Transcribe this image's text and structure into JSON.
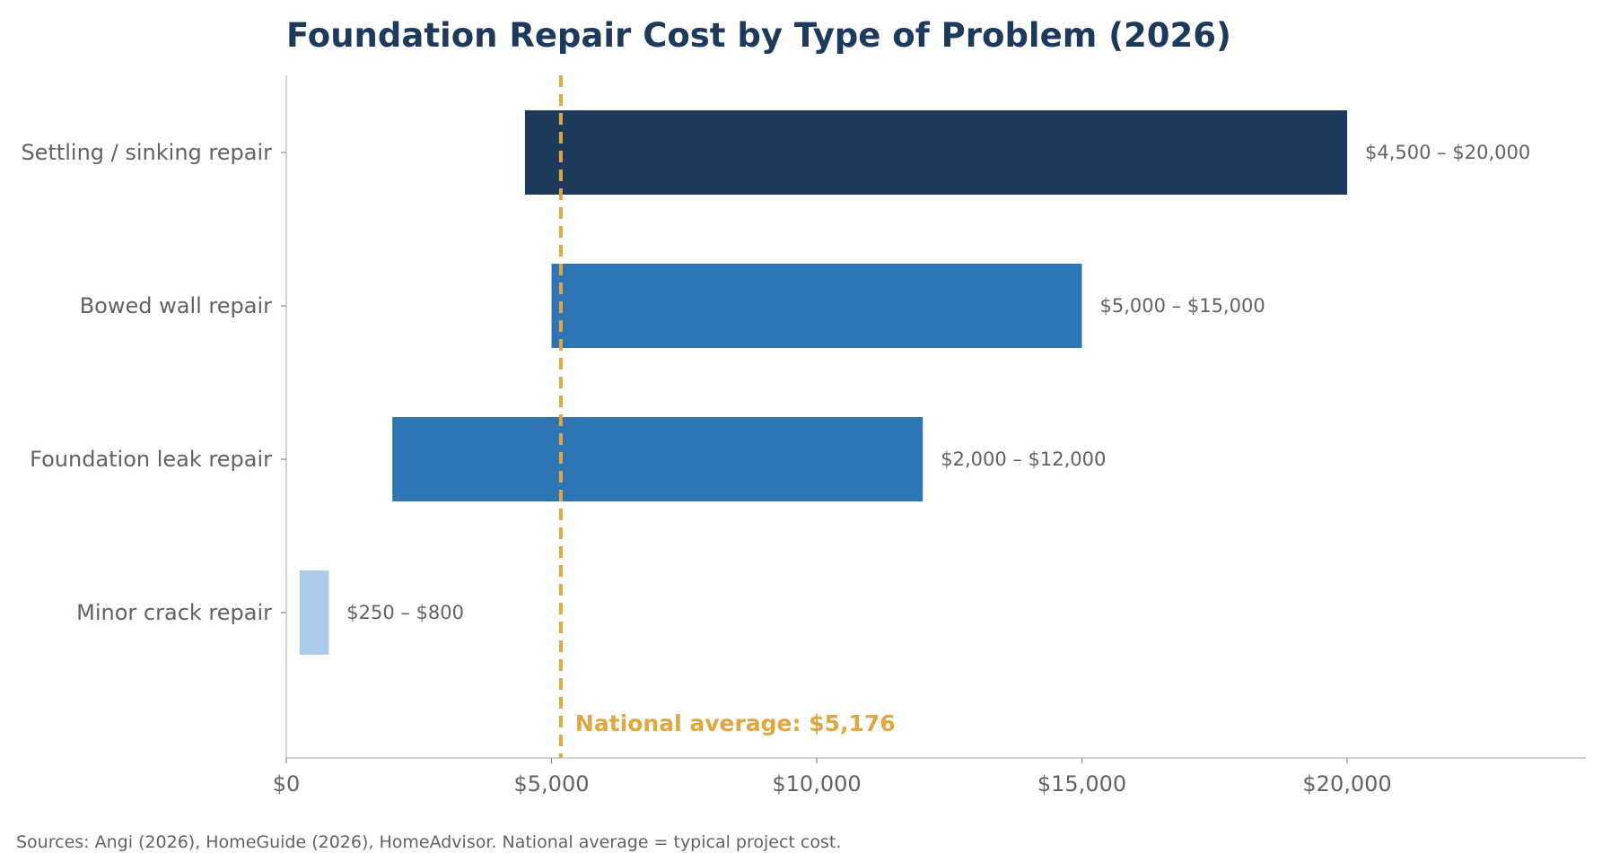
{
  "chart_data": {
    "type": "bar",
    "orientation": "horizontal",
    "title": "Foundation Repair Cost by Type of Problem (2026)",
    "categories": [
      "Settling / sinking repair",
      "Bowed wall repair",
      "Foundation leak repair",
      "Minor crack repair"
    ],
    "series": [
      {
        "low": [
          4500,
          5000,
          2000,
          250
        ],
        "high": [
          20000,
          15000,
          12000,
          800
        ]
      }
    ],
    "data_labels": [
      "$4,500 – $20,000",
      "$5,000 – $15,000",
      "$2,000 – $12,000",
      "$250 – $800"
    ],
    "bar_colors": [
      "#1d3a5c",
      "#2e75b6",
      "#2e75b6",
      "#abcce8"
    ],
    "xlim": [
      0,
      24500
    ],
    "x_ticks": [
      0,
      5000,
      10000,
      15000,
      20000
    ],
    "x_tick_labels": [
      "$0",
      "$5,000",
      "$10,000",
      "$15,000",
      "$20,000"
    ],
    "reference_line": {
      "value": 5176,
      "label": "National average: $5,176",
      "color": "#e0a640",
      "style": "dashed"
    },
    "grid": false,
    "source_note": "Sources: Angi (2026), HomeGuide (2026), HomeAdvisor. National average = typical project cost."
  }
}
